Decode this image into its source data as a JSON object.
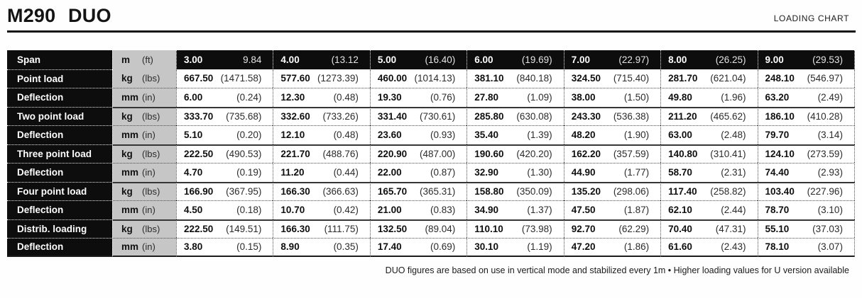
{
  "header": {
    "title": "M290 DUO",
    "right_label": "LOADING CHART"
  },
  "table": {
    "span_row": {
      "label": "Span",
      "unit_metric": "m",
      "unit_imperial": "(ft)",
      "cells": [
        {
          "metric": "3.00",
          "imperial": "9.84"
        },
        {
          "metric": "4.00",
          "imperial": "(13.12"
        },
        {
          "metric": "5.00",
          "imperial": "(16.40)"
        },
        {
          "metric": "6.00",
          "imperial": "(19.69)"
        },
        {
          "metric": "7.00",
          "imperial": "(22.97)"
        },
        {
          "metric": "8.00",
          "imperial": "(26.25)"
        },
        {
          "metric": "9.00",
          "imperial": "(29.53)"
        }
      ]
    },
    "rows": [
      {
        "label": "Point load",
        "unit_metric": "kg",
        "unit_imperial": "(lbs)",
        "cells": [
          {
            "metric": "667.50",
            "imperial": "(1471.58)"
          },
          {
            "metric": "577.60",
            "imperial": "(1273.39)"
          },
          {
            "metric": "460.00",
            "imperial": "(1014.13)"
          },
          {
            "metric": "381.10",
            "imperial": "(840.18)"
          },
          {
            "metric": "324.50",
            "imperial": "(715.40)"
          },
          {
            "metric": "281.70",
            "imperial": "(621.04)"
          },
          {
            "metric": "248.10",
            "imperial": "(546.97)"
          }
        ]
      },
      {
        "label": "Deflection",
        "unit_metric": "mm",
        "unit_imperial": "(in)",
        "cells": [
          {
            "metric": "6.00",
            "imperial": "(0.24)"
          },
          {
            "metric": "12.30",
            "imperial": "(0.48)"
          },
          {
            "metric": "19.30",
            "imperial": "(0.76)"
          },
          {
            "metric": "27.80",
            "imperial": "(1.09)"
          },
          {
            "metric": "38.00",
            "imperial": "(1.50)"
          },
          {
            "metric": "49.80",
            "imperial": "(1.96)"
          },
          {
            "metric": "63.20",
            "imperial": "(2.49)"
          }
        ]
      },
      {
        "label": "Two point load",
        "unit_metric": "kg",
        "unit_imperial": "(lbs)",
        "cells": [
          {
            "metric": "333.70",
            "imperial": "(735.68)"
          },
          {
            "metric": "332.60",
            "imperial": "(733.26)"
          },
          {
            "metric": "331.40",
            "imperial": "(730.61)"
          },
          {
            "metric": "285.80",
            "imperial": "(630.08)"
          },
          {
            "metric": "243.30",
            "imperial": "(536.38)"
          },
          {
            "metric": "211.20",
            "imperial": "(465.62)"
          },
          {
            "metric": "186.10",
            "imperial": "(410.28)"
          }
        ]
      },
      {
        "label": "Deflection",
        "unit_metric": "mm",
        "unit_imperial": "(in)",
        "cells": [
          {
            "metric": "5.10",
            "imperial": "(0.20)"
          },
          {
            "metric": "12.10",
            "imperial": "(0.48)"
          },
          {
            "metric": "23.60",
            "imperial": "(0.93)"
          },
          {
            "metric": "35.40",
            "imperial": "(1.39)"
          },
          {
            "metric": "48.20",
            "imperial": "(1.90)"
          },
          {
            "metric": "63.00",
            "imperial": "(2.48)"
          },
          {
            "metric": "79.70",
            "imperial": "(3.14)"
          }
        ]
      },
      {
        "label": "Three point load",
        "unit_metric": "kg",
        "unit_imperial": "(lbs)",
        "cells": [
          {
            "metric": "222.50",
            "imperial": "(490.53)"
          },
          {
            "metric": "221.70",
            "imperial": "(488.76)"
          },
          {
            "metric": "220.90",
            "imperial": "(487.00)"
          },
          {
            "metric": "190.60",
            "imperial": "(420.20)"
          },
          {
            "metric": "162.20",
            "imperial": "(357.59)"
          },
          {
            "metric": "140.80",
            "imperial": "(310.41)"
          },
          {
            "metric": "124.10",
            "imperial": "(273.59)"
          }
        ]
      },
      {
        "label": "Deflection",
        "unit_metric": "mm",
        "unit_imperial": "(in)",
        "cells": [
          {
            "metric": "4.70",
            "imperial": "(0.19)"
          },
          {
            "metric": "11.20",
            "imperial": "(0.44)"
          },
          {
            "metric": "22.00",
            "imperial": "(0.87)"
          },
          {
            "metric": "32.90",
            "imperial": "(1.30)"
          },
          {
            "metric": "44.90",
            "imperial": "(1.77)"
          },
          {
            "metric": "58.70",
            "imperial": "(2.31)"
          },
          {
            "metric": "74.40",
            "imperial": "(2.93)"
          }
        ]
      },
      {
        "label": "Four point load",
        "unit_metric": "kg",
        "unit_imperial": "(lbs)",
        "cells": [
          {
            "metric": "166.90",
            "imperial": "(367.95)"
          },
          {
            "metric": "166.30",
            "imperial": "(366.63)"
          },
          {
            "metric": "165.70",
            "imperial": "(365.31)"
          },
          {
            "metric": "158.80",
            "imperial": "(350.09)"
          },
          {
            "metric": "135.20",
            "imperial": "(298.06)"
          },
          {
            "metric": "117.40",
            "imperial": "(258.82)"
          },
          {
            "metric": "103.40",
            "imperial": "(227.96)"
          }
        ]
      },
      {
        "label": "Deflection",
        "unit_metric": "mm",
        "unit_imperial": "(in)",
        "cells": [
          {
            "metric": "4.50",
            "imperial": "(0.18)"
          },
          {
            "metric": "10.70",
            "imperial": "(0.42)"
          },
          {
            "metric": "21.00",
            "imperial": "(0.83)"
          },
          {
            "metric": "34.90",
            "imperial": "(1.37)"
          },
          {
            "metric": "47.50",
            "imperial": "(1.87)"
          },
          {
            "metric": "62.10",
            "imperial": "(2.44)"
          },
          {
            "metric": "78.70",
            "imperial": "(3.10)"
          }
        ]
      },
      {
        "label": "Distrib. loading",
        "unit_metric": "kg",
        "unit_imperial": "(lbs)",
        "cells": [
          {
            "metric": "222.50",
            "imperial": "(149.51)"
          },
          {
            "metric": "166.30",
            "imperial": "(111.75)"
          },
          {
            "metric": "132.50",
            "imperial": "(89.04)"
          },
          {
            "metric": "110.10",
            "imperial": "(73.98)"
          },
          {
            "metric": "92.70",
            "imperial": "(62.29)"
          },
          {
            "metric": "70.40",
            "imperial": "(47.31)"
          },
          {
            "metric": "55.10",
            "imperial": "(37.03)"
          }
        ]
      },
      {
        "label": "Deflection",
        "unit_metric": "mm",
        "unit_imperial": "(in)",
        "cells": [
          {
            "metric": "3.80",
            "imperial": "(0.15)"
          },
          {
            "metric": "8.90",
            "imperial": "(0.35)"
          },
          {
            "metric": "17.40",
            "imperial": "(0.69)"
          },
          {
            "metric": "30.10",
            "imperial": "(1.19)"
          },
          {
            "metric": "47.20",
            "imperial": "(1.86)"
          },
          {
            "metric": "61.60",
            "imperial": "(2.43)"
          },
          {
            "metric": "78.10",
            "imperial": "(3.07)"
          }
        ]
      }
    ]
  },
  "footnote": "DUO figures are based on use in vertical mode and stabilized every 1m • Higher loading values for U version available"
}
